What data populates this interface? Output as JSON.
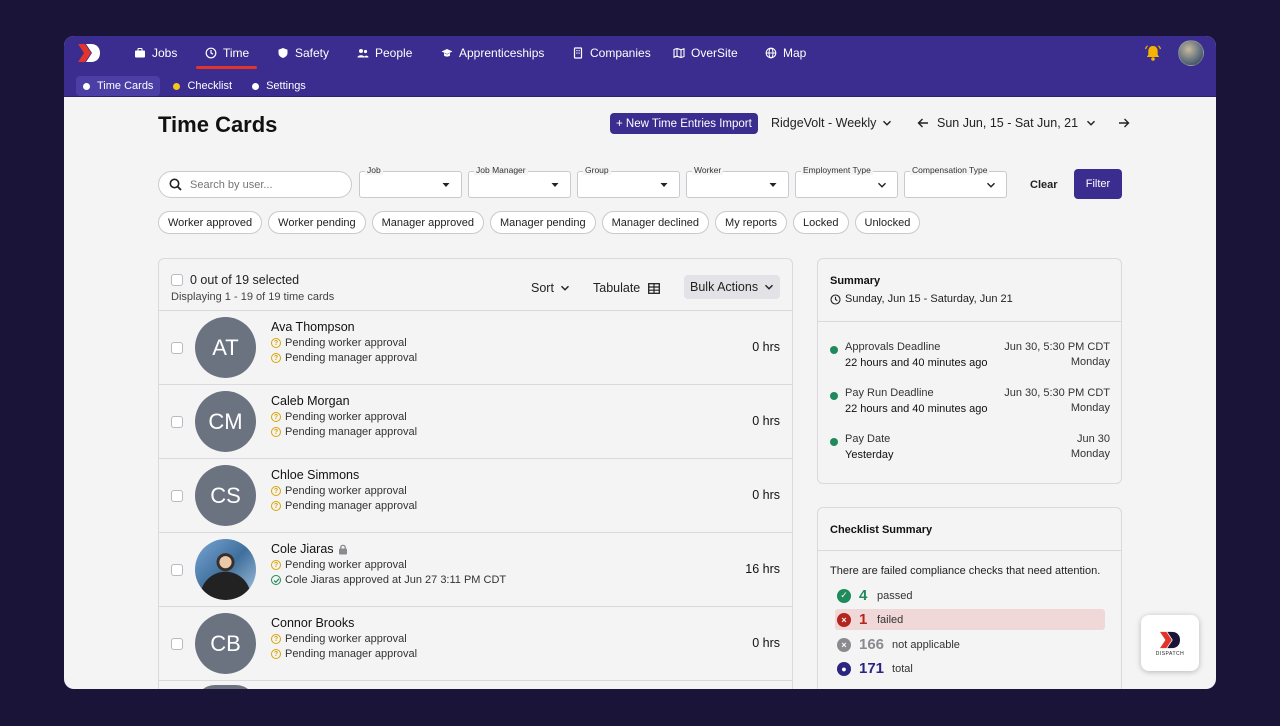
{
  "nav": {
    "items": [
      {
        "label": "Jobs",
        "icon": "briefcase-icon"
      },
      {
        "label": "Time",
        "icon": "clock-icon"
      },
      {
        "label": "Safety",
        "icon": "shield-icon"
      },
      {
        "label": "People",
        "icon": "people-icon"
      },
      {
        "label": "Apprenticeships",
        "icon": "graduation-cap-icon"
      },
      {
        "label": "Companies",
        "icon": "building-icon"
      },
      {
        "label": "OverSite",
        "icon": "map-fold-icon"
      },
      {
        "label": "Map",
        "icon": "globe-icon"
      }
    ],
    "active": "Time"
  },
  "subnav": {
    "items": [
      {
        "label": "Time Cards",
        "dot_color": "#ffffff"
      },
      {
        "label": "Checklist",
        "dot_color": "#f5c518"
      },
      {
        "label": "Settings",
        "dot_color": "#ffffff"
      }
    ],
    "active": "Time Cards"
  },
  "header": {
    "title": "Time Cards",
    "new_import_label": "+ New Time Entries Import",
    "schedule": "RidgeVolt - Weekly",
    "date_range": "Sun Jun, 15 - Sat Jun, 21"
  },
  "filters": {
    "search_placeholder": "Search by user...",
    "selects": [
      {
        "label": "Job",
        "value": ""
      },
      {
        "label": "Job Manager",
        "value": ""
      },
      {
        "label": "Group",
        "value": ""
      },
      {
        "label": "Worker",
        "value": ""
      },
      {
        "label": "Employment Type",
        "value": ""
      },
      {
        "label": "Compensation Type",
        "value": ""
      }
    ],
    "clear_label": "Clear",
    "filter_label": "Filter",
    "chips": [
      "Worker approved",
      "Worker pending",
      "Manager approved",
      "Manager pending",
      "Manager declined",
      "My reports",
      "Locked",
      "Unlocked"
    ]
  },
  "list": {
    "selected_text": "0 out of 19 selected",
    "displaying_text": "Displaying 1 - 19 of 19 time cards",
    "sort_label": "Sort",
    "tabulate_label": "Tabulate",
    "bulk_label": "Bulk Actions",
    "rows": [
      {
        "initials": "AT",
        "name": "Ava Thompson",
        "locked": false,
        "status1": "Pending worker approval",
        "status2": "Pending manager approval",
        "status2_kind": "pending",
        "hours": "0 hrs"
      },
      {
        "initials": "CM",
        "name": "Caleb Morgan",
        "locked": false,
        "status1": "Pending worker approval",
        "status2": "Pending manager approval",
        "status2_kind": "pending",
        "hours": "0 hrs"
      },
      {
        "initials": "CS",
        "name": "Chloe Simmons",
        "locked": false,
        "status1": "Pending worker approval",
        "status2": "Pending manager approval",
        "status2_kind": "pending",
        "hours": "0 hrs"
      },
      {
        "initials": "",
        "name": "Cole Jiaras",
        "locked": true,
        "status1": "Pending worker approval",
        "status2": "Cole Jiaras approved at Jun 27 3:11 PM CDT",
        "status2_kind": "approved",
        "hours": "16 hrs"
      },
      {
        "initials": "CB",
        "name": "Connor Brooks",
        "locked": false,
        "status1": "Pending worker approval",
        "status2": "Pending manager approval",
        "status2_kind": "pending",
        "hours": "0 hrs"
      }
    ]
  },
  "summary": {
    "title": "Summary",
    "period": "Sunday, Jun 15 - Saturday, Jun 21",
    "deadlines": [
      {
        "name": "Approvals Deadline",
        "relative": "22 hours and 40 minutes ago",
        "when": "Jun 30, 5:30 PM CDT",
        "day": "Monday"
      },
      {
        "name": "Pay Run Deadline",
        "relative": "22 hours and 40 minutes ago",
        "when": "Jun 30, 5:30 PM CDT",
        "day": "Monday"
      },
      {
        "name": "Pay Date",
        "relative": "Yesterday",
        "when": "Jun 30",
        "day": "Monday"
      }
    ]
  },
  "checklist": {
    "title": "Checklist Summary",
    "message": "There are failed compliance checks that need attention.",
    "stats": [
      {
        "count": "4",
        "label": "passed",
        "color": "#1f8a5b"
      },
      {
        "count": "1",
        "label": "failed",
        "color": "#b3261e"
      },
      {
        "count": "166",
        "label": "not applicable",
        "color": "#8a8a8f"
      },
      {
        "count": "171",
        "label": "total",
        "color": "#2c2580"
      }
    ]
  },
  "brand": {
    "fab_text": "DISPATCH"
  }
}
